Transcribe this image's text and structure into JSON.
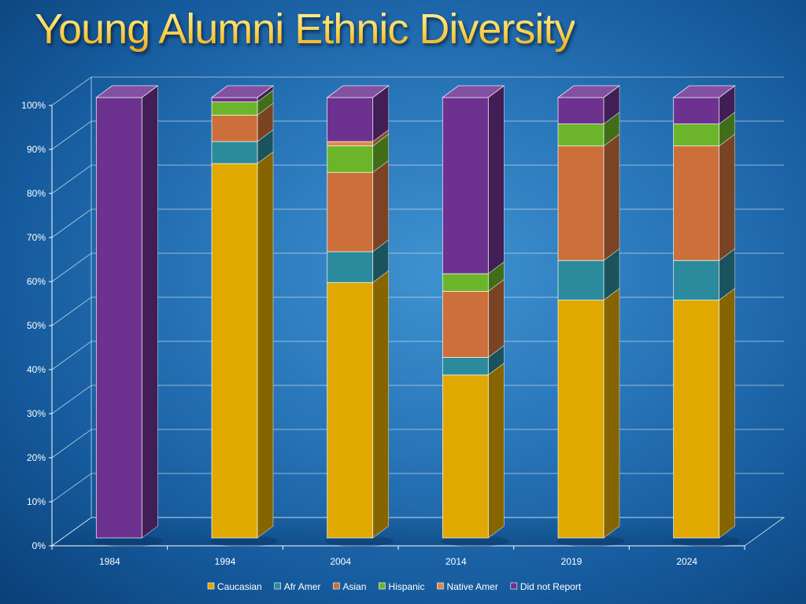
{
  "title": "Young Alumni Ethnic Diversity",
  "chart_data": {
    "type": "bar",
    "stacked": true,
    "percent": true,
    "three_d": true,
    "categories": [
      "1984",
      "1994",
      "2004",
      "2014",
      "2019",
      "2024"
    ],
    "series": [
      {
        "name": "Caucasian",
        "color": "#e0a800",
        "values": [
          0,
          85,
          58,
          37,
          54,
          54
        ]
      },
      {
        "name": "Afr Amer",
        "color": "#2b8a9c",
        "values": [
          0,
          5,
          7,
          4,
          9,
          9
        ]
      },
      {
        "name": "Asian",
        "color": "#cc6f3a",
        "values": [
          0,
          6,
          18,
          15,
          26,
          26
        ]
      },
      {
        "name": "Hispanic",
        "color": "#6cb52a",
        "values": [
          0,
          3,
          6,
          4,
          5,
          5
        ]
      },
      {
        "name": "Native Amer",
        "color": "#dd8a4a",
        "values": [
          0,
          0,
          1,
          0,
          0,
          0
        ]
      },
      {
        "name": "Did not Report",
        "color": "#6d3290",
        "values": [
          100,
          1,
          10,
          40,
          6,
          6
        ]
      }
    ],
    "y_ticks": [
      "0%",
      "10%",
      "20%",
      "30%",
      "40%",
      "50%",
      "60%",
      "70%",
      "80%",
      "90%",
      "100%"
    ],
    "ylim": [
      0,
      100
    ],
    "grid": true,
    "legend_position": "bottom"
  }
}
